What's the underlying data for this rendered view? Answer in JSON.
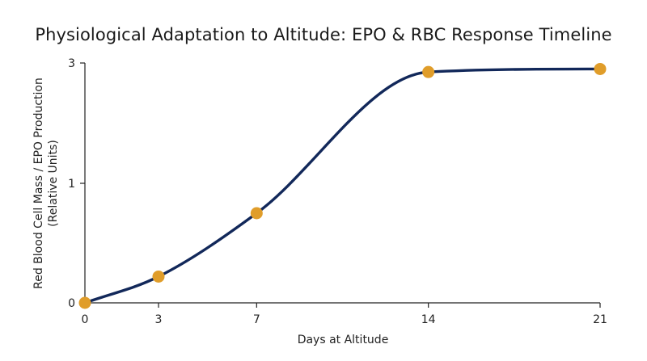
{
  "chart_data": {
    "type": "line",
    "title": "Physiological Adaptation to Altitude: EPO & RBC Response Timeline",
    "xlabel": "Days at Altitude",
    "ylabel_line1": "Red Blood Cell Mass / EPO Production",
    "ylabel_line2": "(Relative Units)",
    "xlim": [
      0,
      21
    ],
    "x_ticks": [
      0,
      3,
      7,
      14,
      21
    ],
    "y_ticks": [
      0,
      1,
      3
    ],
    "y_scale": "nonlinear",
    "grid": false,
    "series": [
      {
        "x": [
          0,
          3,
          7,
          14,
          21
        ],
        "y": [
          0,
          0.22,
          0.75,
          2.85,
          2.9
        ]
      }
    ],
    "colors": {
      "line": "#12285a",
      "marker": "#e09d2a",
      "axis": "#222222"
    }
  }
}
